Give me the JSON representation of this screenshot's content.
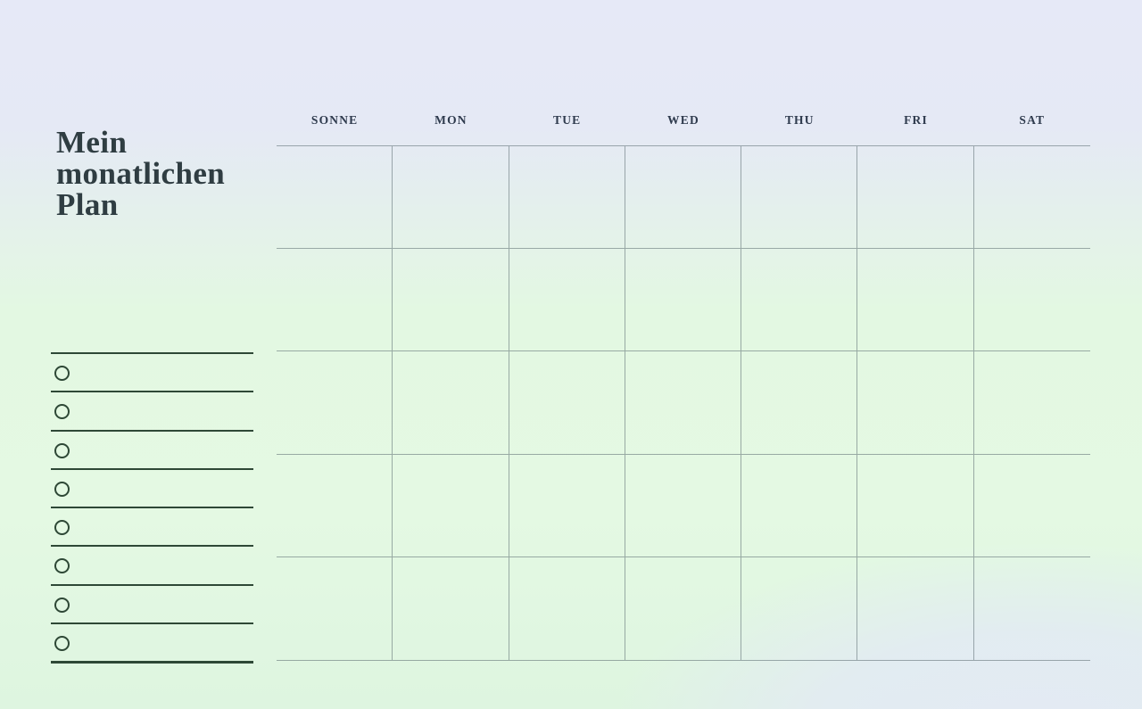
{
  "title": {
    "full": "Mein monatlichen Plan",
    "lines": [
      "Mein",
      "monatlichen",
      "Plan"
    ]
  },
  "calendar": {
    "day_headers": [
      "SONNE",
      "MON",
      "TUE",
      "WED",
      "THU",
      "FRI",
      "SAT"
    ],
    "rows": 5,
    "columns": 7
  },
  "checklist": {
    "item_count": 8
  },
  "colors": {
    "bg_top": "#e6e9f7",
    "bg_mid": "#e3f8e2",
    "bg_bottom_left": "#def5e0",
    "bg_bottom_right": "#e3eaf4",
    "title_text": "#2f3d42",
    "header_text": "#2e3a4d",
    "grid_line": "rgba(90,106,112,0.55)",
    "checklist_accent": "#2e4836"
  }
}
